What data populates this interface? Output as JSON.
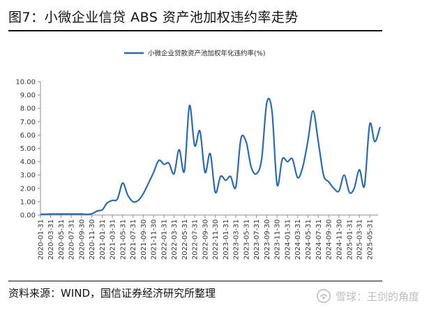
{
  "header": {
    "title": "图7：小微企业信贷 ABS 资产池加权违约率走势"
  },
  "footer": {
    "source": "资料来源：WIND，国信证券经济研究所整理",
    "watermark": "雪球：王剑的角度"
  },
  "colors": {
    "series": "#2e6aaa",
    "axis": "#8c8c8c",
    "rule": "#111111"
  },
  "chart_data": {
    "type": "line",
    "legend": {
      "position": "top-center"
    },
    "grid": false,
    "ylim": [
      0,
      10
    ],
    "y_ticks": [
      "0.00",
      "1.00",
      "2.00",
      "3.00",
      "4.00",
      "5.00",
      "6.00",
      "7.00",
      "8.00",
      "9.00",
      "10.00"
    ],
    "x_ticks": [
      "2020-01-31",
      "2020-03-31",
      "2020-05-31",
      "2020-07-31",
      "2020-09-30",
      "2020-11-30",
      "2021-01-31",
      "2021-03-31",
      "2021-05-31",
      "2021-07-31",
      "2021-09-30",
      "2021-11-30",
      "2022-01-31",
      "2022-03-31",
      "2022-05-31",
      "2022-07-31",
      "2022-09-30",
      "2022-11-30",
      "2023-01-31",
      "2023-03-31",
      "2023-05-31",
      "2023-07-31",
      "2023-09-30",
      "2023-11-30",
      "2024-01-31",
      "2024-03-31",
      "2024-05-31",
      "2024-07-31",
      "2024-09-30",
      "2024-11-30",
      "2025-01-31",
      "2025-03-31",
      "2025-05-31"
    ],
    "series": [
      {
        "name": "小微企业贷款资产池加权年化违约率(%)",
        "points": [
          [
            "2020-01-31",
            0.05
          ],
          [
            "2020-03-31",
            0.08
          ],
          [
            "2020-05-31",
            0.08
          ],
          [
            "2020-07-31",
            0.08
          ],
          [
            "2020-09-30",
            0.08
          ],
          [
            "2020-10-31",
            0.05
          ],
          [
            "2020-11-30",
            0.1
          ],
          [
            "2020-12-31",
            0.3
          ],
          [
            "2021-01-31",
            0.4
          ],
          [
            "2021-02-28",
            0.9
          ],
          [
            "2021-03-31",
            1.1
          ],
          [
            "2021-04-30",
            1.2
          ],
          [
            "2021-05-31",
            2.4
          ],
          [
            "2021-06-30",
            1.5
          ],
          [
            "2021-07-31",
            1.0
          ],
          [
            "2021-08-31",
            1.1
          ],
          [
            "2021-09-30",
            1.6
          ],
          [
            "2021-10-31",
            2.4
          ],
          [
            "2021-11-30",
            3.2
          ],
          [
            "2021-12-31",
            4.1
          ],
          [
            "2022-01-31",
            3.8
          ],
          [
            "2022-02-28",
            3.9
          ],
          [
            "2022-03-31",
            3.1
          ],
          [
            "2022-04-30",
            4.9
          ],
          [
            "2022-05-31",
            3.3
          ],
          [
            "2022-06-30",
            8.2
          ],
          [
            "2022-07-31",
            5.2
          ],
          [
            "2022-08-31",
            6.3
          ],
          [
            "2022-09-30",
            3.2
          ],
          [
            "2022-10-31",
            4.6
          ],
          [
            "2022-11-30",
            1.7
          ],
          [
            "2022-12-31",
            2.9
          ],
          [
            "2023-01-31",
            2.6
          ],
          [
            "2023-02-28",
            2.9
          ],
          [
            "2023-03-31",
            2.1
          ],
          [
            "2023-04-30",
            5.7
          ],
          [
            "2023-05-31",
            5.5
          ],
          [
            "2023-06-30",
            3.6
          ],
          [
            "2023-07-31",
            3.1
          ],
          [
            "2023-08-31",
            4.2
          ],
          [
            "2023-09-30",
            8.4
          ],
          [
            "2023-10-31",
            7.8
          ],
          [
            "2023-11-30",
            2.3
          ],
          [
            "2023-12-31",
            4.2
          ],
          [
            "2024-01-31",
            4.0
          ],
          [
            "2024-02-29",
            4.2
          ],
          [
            "2024-03-31",
            2.8
          ],
          [
            "2024-04-30",
            3.6
          ],
          [
            "2024-05-31",
            5.6
          ],
          [
            "2024-06-30",
            7.8
          ],
          [
            "2024-07-31",
            5.5
          ],
          [
            "2024-08-31",
            3.0
          ],
          [
            "2024-09-30",
            2.5
          ],
          [
            "2024-10-31",
            2.0
          ],
          [
            "2024-11-30",
            1.8
          ],
          [
            "2024-12-31",
            3.0
          ],
          [
            "2025-01-31",
            1.7
          ],
          [
            "2025-02-28",
            2.0
          ],
          [
            "2025-03-31",
            3.4
          ],
          [
            "2025-04-30",
            2.2
          ],
          [
            "2025-05-31",
            6.8
          ],
          [
            "2025-06-30",
            5.5
          ],
          [
            "2025-07-31",
            6.6
          ]
        ]
      }
    ]
  }
}
